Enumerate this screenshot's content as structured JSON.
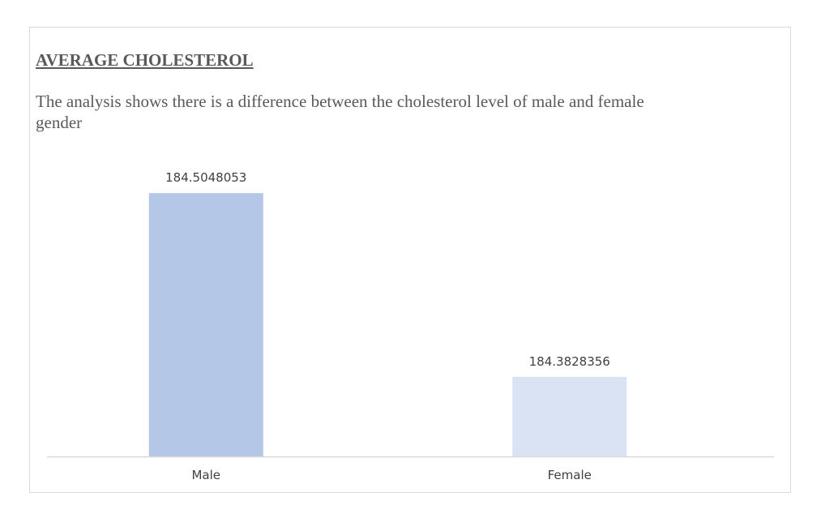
{
  "chart_data": {
    "type": "bar",
    "title": "AVERAGE CHOLESTEROL",
    "subtitle": "The analysis shows there is a difference between the cholesterol level of male and female gender",
    "categories": [
      "Male",
      "Female"
    ],
    "values": [
      184.5048053,
      184.3828356
    ],
    "data_labels": [
      "184.5048053",
      "184.3828356"
    ],
    "ylim": [
      184.33,
      184.52
    ],
    "bar_colors": [
      "#b4c7e7",
      "#dae3f3"
    ],
    "axis_color": "#d9d9d9",
    "grid": false,
    "legend": "none"
  }
}
